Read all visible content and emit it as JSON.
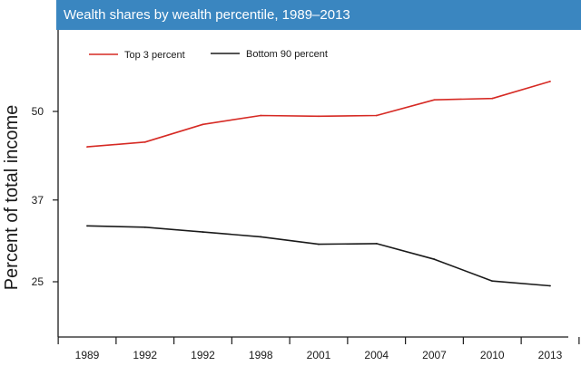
{
  "chart_data": {
    "type": "line",
    "title": "Wealth shares by wealth percentile, 1989–2013",
    "xlabel": "",
    "ylabel": "Percent of total income",
    "categories": [
      "1989",
      "1992",
      "1992",
      "1998",
      "2001",
      "2004",
      "2007",
      "2010",
      "2013"
    ],
    "yticks": [
      25,
      37,
      50
    ],
    "ylim": [
      19,
      59
    ],
    "grid": false,
    "legend_position": "top-left",
    "series": [
      {
        "name": "Top 3 percent",
        "color": "#d62a24",
        "values": [
          44.8,
          45.5,
          48.1,
          49.4,
          49.3,
          49.4,
          51.7,
          51.9,
          54.4
        ]
      },
      {
        "name": "Bottom 90 percent",
        "color": "#1a1a1a",
        "values": [
          33.2,
          33.0,
          32.3,
          31.6,
          30.5,
          30.6,
          28.3,
          25.1,
          24.4
        ]
      }
    ]
  }
}
